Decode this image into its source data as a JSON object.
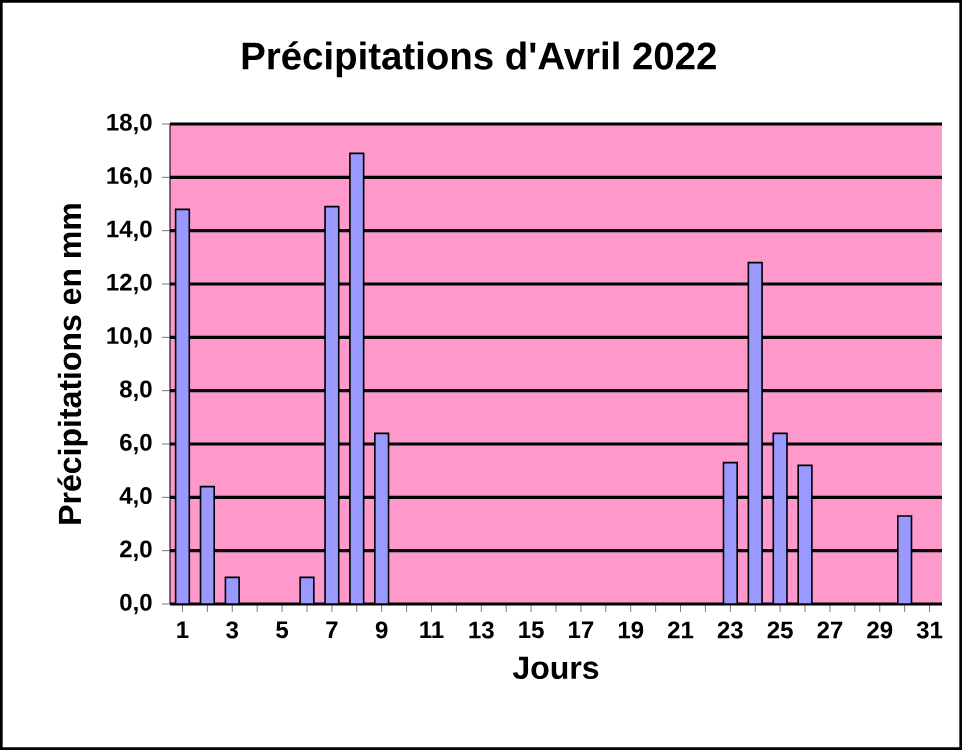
{
  "chart_data": {
    "type": "bar",
    "title": "Précipitations d'Avril 2022",
    "xlabel": "Jours",
    "ylabel": "Précipitations en mm",
    "categories": [
      "1",
      null,
      "3",
      null,
      "5",
      null,
      "7",
      null,
      "9",
      null,
      "11",
      null,
      "13",
      null,
      "15",
      null,
      "17",
      null,
      "19",
      null,
      "21",
      null,
      "23",
      null,
      "25",
      null,
      "27",
      null,
      "29",
      null,
      "31"
    ],
    "values": [
      14.8,
      4.4,
      1.0,
      null,
      null,
      1.0,
      14.9,
      16.9,
      6.4,
      null,
      null,
      null,
      null,
      null,
      null,
      null,
      null,
      null,
      null,
      null,
      null,
      null,
      5.3,
      12.8,
      6.4,
      5.2,
      null,
      null,
      null,
      3.3,
      null
    ],
    "color": "#9999ff",
    "ylim": [
      0,
      18
    ],
    "yticks": [
      {
        "value": 0,
        "label": "0,0"
      },
      {
        "value": 2,
        "label": "2,0"
      },
      {
        "value": 4,
        "label": "4,0"
      },
      {
        "value": 6,
        "label": "6,0"
      },
      {
        "value": 8,
        "label": "8,0"
      },
      {
        "value": 10,
        "label": "10,0"
      },
      {
        "value": 12,
        "label": "12,0"
      },
      {
        "value": 14,
        "label": "14,0"
      },
      {
        "value": 16,
        "label": "16,0"
      },
      {
        "value": 18,
        "label": "18,0"
      }
    ],
    "grid": "y"
  }
}
